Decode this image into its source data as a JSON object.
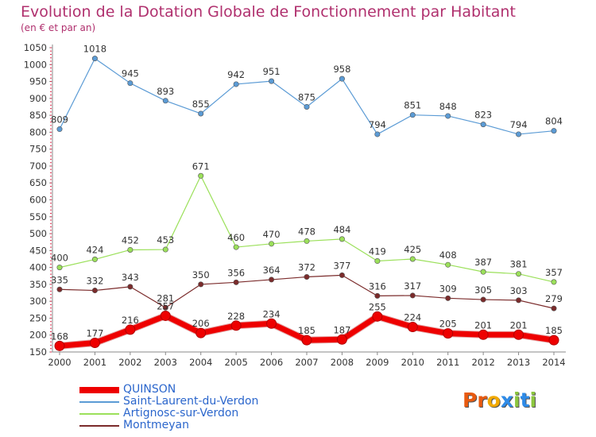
{
  "header": {
    "title": "Evolution de la Dotation Globale de Fonctionnement par Habitant",
    "subtitle": "(en € et par an)"
  },
  "brand": {
    "letters": [
      "P",
      "r",
      "o",
      "x",
      "i",
      "t",
      "i"
    ],
    "colors": [
      "#e85a10",
      "#e85a10",
      "#f2a900",
      "#2e8be8",
      "#8cc63e",
      "#2e8be8",
      "#8cc63e"
    ]
  },
  "chart_data": {
    "type": "line",
    "x": [
      "2000",
      "2001",
      "2002",
      "2003",
      "2004",
      "2005",
      "2006",
      "2007",
      "2008",
      "2009",
      "2010",
      "2011",
      "2012",
      "2013",
      "2014"
    ],
    "ylim": [
      150,
      1050
    ],
    "yticks": [
      150,
      200,
      250,
      300,
      350,
      400,
      450,
      500,
      550,
      600,
      650,
      700,
      750,
      800,
      850,
      900,
      950,
      1000,
      1050
    ],
    "grid": false,
    "legend_position": "bottom-left",
    "series": [
      {
        "name": "QUINSON",
        "color": "#ee0000",
        "width": 7,
        "values": [
          168,
          177,
          216,
          257,
          206,
          228,
          234,
          185,
          187,
          255,
          224,
          205,
          201,
          201,
          185
        ],
        "labels": [
          "168",
          "177",
          "216",
          "257",
          "206",
          "228",
          "234",
          "185",
          "187",
          "255",
          "224",
          "205",
          "201",
          "201",
          "185"
        ]
      },
      {
        "name": "Saint-Laurent-du-Verdon",
        "color": "#5b9bd5",
        "width": 1.2,
        "values": [
          809,
          1018,
          945,
          893,
          855,
          942,
          951,
          875,
          958,
          794,
          851,
          848,
          823,
          794,
          804
        ],
        "labels": [
          "809",
          "1018",
          "945",
          "893",
          "855",
          "942",
          "951",
          "875",
          "958",
          "794",
          "851",
          "848",
          "823",
          "794",
          "804"
        ]
      },
      {
        "name": "Artignosc-sur-Verdon",
        "color": "#9be05a",
        "width": 1.2,
        "values": [
          400,
          424,
          452,
          453,
          671,
          460,
          470,
          478,
          484,
          419,
          425,
          408,
          387,
          381,
          357
        ],
        "labels": [
          "400",
          "424",
          "452",
          "453",
          "671",
          "460",
          "470",
          "478",
          "484",
          "419",
          "425",
          "408",
          "387",
          "381",
          "357"
        ]
      },
      {
        "name": "Montmeyan",
        "color": "#7b2b2b",
        "width": 1.2,
        "values": [
          335,
          332,
          343,
          281,
          350,
          356,
          364,
          372,
          377,
          316,
          317,
          309,
          305,
          303,
          279
        ],
        "labels": [
          "335",
          "332",
          "343",
          "281",
          "350",
          "356",
          "364",
          "372",
          "377",
          "316",
          "317",
          "309",
          "305",
          "303",
          "279"
        ]
      }
    ]
  }
}
